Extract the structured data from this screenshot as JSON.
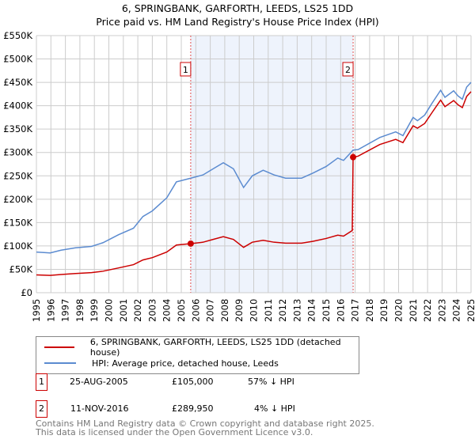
{
  "title": "6, SPRINGBANK, GARFORTH, LEEDS, LS25 1DD",
  "subtitle": "Price paid vs. HM Land Registry's House Price Index (HPI)",
  "chart_data": {
    "type": "line",
    "xlim": [
      1995,
      2025
    ],
    "ylim": [
      0,
      550000
    ],
    "yticks": [
      {
        "v": 0,
        "label": "£0"
      },
      {
        "v": 50000,
        "label": "£50K"
      },
      {
        "v": 100000,
        "label": "£100K"
      },
      {
        "v": 150000,
        "label": "£150K"
      },
      {
        "v": 200000,
        "label": "£200K"
      },
      {
        "v": 250000,
        "label": "£250K"
      },
      {
        "v": 300000,
        "label": "£300K"
      },
      {
        "v": 350000,
        "label": "£350K"
      },
      {
        "v": 400000,
        "label": "£400K"
      },
      {
        "v": 450000,
        "label": "£450K"
      },
      {
        "v": 500000,
        "label": "£500K"
      },
      {
        "v": 550000,
        "label": "£550K"
      }
    ],
    "xticks": [
      "1995",
      "1996",
      "1997",
      "1998",
      "1999",
      "2000",
      "2001",
      "2002",
      "2003",
      "2004",
      "2005",
      "2006",
      "2007",
      "2008",
      "2009",
      "2010",
      "2011",
      "2012",
      "2013",
      "2014",
      "2015",
      "2016",
      "2017",
      "2018",
      "2019",
      "2020",
      "2021",
      "2022",
      "2023",
      "2024",
      "2025"
    ],
    "grid": true,
    "shaded_range": [
      2005.65,
      2016.86
    ],
    "series": [
      {
        "name": "6, SPRINGBANK, GARFORTH, LEEDS, LS25 1DD (detached house)",
        "color": "#cc0000",
        "x": [
          1995,
          1995.95,
          1996.7,
          1997.7,
          1998.8,
          1999.6,
          2000.67,
          2001.7,
          2002.35,
          2003,
          2004,
          2004.66,
          2005.65,
          2006.5,
          2007.2,
          2007.9,
          2008.6,
          2009.3,
          2009.9,
          2010.65,
          2011.4,
          2012.2,
          2013.3,
          2014.1,
          2015,
          2015.8,
          2016.2,
          2016.8,
          2016.86,
          2017.2,
          2018.7,
          2019.8,
          2020.3,
          2021,
          2021.3,
          2021.8,
          2022.3,
          2022.9,
          2023.2,
          2023.8,
          2024.1,
          2024.4,
          2024.7,
          2025
        ],
        "y": [
          38000,
          37000,
          39000,
          41000,
          43000,
          46000,
          53000,
          60000,
          70000,
          75000,
          87000,
          102000,
          105000,
          108000,
          114000,
          120000,
          114000,
          97000,
          108000,
          112000,
          108000,
          106000,
          106000,
          110000,
          116000,
          123000,
          121000,
          133000,
          289950,
          292000,
          317000,
          328000,
          321000,
          357000,
          352000,
          362000,
          385000,
          412000,
          398000,
          411000,
          402000,
          396000,
          420000,
          430000
        ]
      },
      {
        "name": "HPI: Average price, detached house, Leeds",
        "color": "#5b8bd0",
        "x": [
          1995,
          1995.95,
          1996.7,
          1997.7,
          1998.8,
          1999.6,
          2000.67,
          2001.7,
          2002.35,
          2003,
          2004,
          2004.66,
          2005.65,
          2006.5,
          2007.2,
          2007.9,
          2008.6,
          2009.3,
          2009.9,
          2010.65,
          2011.4,
          2012.2,
          2013.3,
          2014.1,
          2015,
          2015.8,
          2016.2,
          2016.86,
          2017.2,
          2018.7,
          2019.8,
          2020.3,
          2021,
          2021.3,
          2021.8,
          2022.3,
          2022.9,
          2023.2,
          2023.8,
          2024.1,
          2024.4,
          2024.7,
          2025
        ],
        "y": [
          87000,
          85000,
          91000,
          96000,
          99000,
          107000,
          124000,
          138000,
          163000,
          175000,
          203000,
          237000,
          245000,
          252000,
          265000,
          278000,
          265000,
          225000,
          250000,
          262000,
          252000,
          245000,
          245000,
          256000,
          270000,
          288000,
          283000,
          305000,
          306000,
          332000,
          344000,
          336000,
          375000,
          368000,
          380000,
          405000,
          433000,
          418000,
          432000,
          421000,
          414000,
          440000,
          450000
        ]
      }
    ],
    "annotations": [
      {
        "label": "1",
        "x": 2005.65,
        "y": 105000
      },
      {
        "label": "2",
        "x": 2016.86,
        "y": 289950
      }
    ]
  },
  "legend": [
    "6, SPRINGBANK, GARFORTH, LEEDS, LS25 1DD (detached house)",
    "HPI: Average price, detached house, Leeds"
  ],
  "transactions": [
    {
      "num": "1",
      "date": "25-AUG-2005",
      "price": "£105,000",
      "hpi": "57% ↓ HPI"
    },
    {
      "num": "2",
      "date": "11-NOV-2016",
      "price": "£289,950",
      "hpi": "4% ↓ HPI"
    }
  ],
  "footer": [
    "Contains HM Land Registry data © Crown copyright and database right 2025.",
    "This data is licensed under the Open Government Licence v3.0."
  ]
}
